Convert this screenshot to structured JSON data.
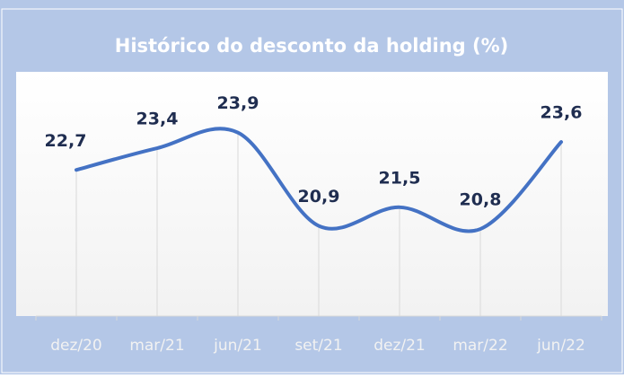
{
  "chart_data": {
    "type": "line",
    "title": "Histórico do desconto da holding (%)",
    "categories": [
      "dez/20",
      "mar/21",
      "jun/21",
      "set/21",
      "dez/21",
      "mar/22",
      "jun/22"
    ],
    "series": [
      {
        "color": "#4472c4",
        "values": [
          22.7,
          23.4,
          23.9,
          20.9,
          21.5,
          20.8,
          23.6
        ],
        "value_labels": [
          "22,7",
          "23,4",
          "23,9",
          "20,9",
          "21,5",
          "20,8",
          "23,6"
        ]
      }
    ],
    "ylim": [
      18,
      26
    ],
    "grid": true
  }
}
